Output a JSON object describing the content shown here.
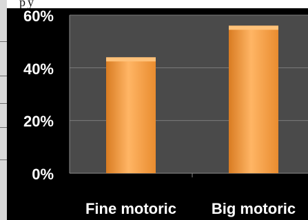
{
  "chart_data": {
    "type": "bar",
    "categories": [
      "Fine motoric",
      "Big motoric"
    ],
    "values": [
      44,
      56
    ],
    "y_ticks": [
      "0%",
      "20%",
      "40%",
      "60%"
    ],
    "ylim": [
      0,
      60
    ],
    "grid": true,
    "legend": "none",
    "colors": {
      "plot_background": "#4a4a4a",
      "page_background": "#000000",
      "bar_fill_light": "#ffc27a",
      "bar_fill_dark": "#e9892c",
      "gridline": "#7d7d7d",
      "text": "#ffffff"
    }
  }
}
